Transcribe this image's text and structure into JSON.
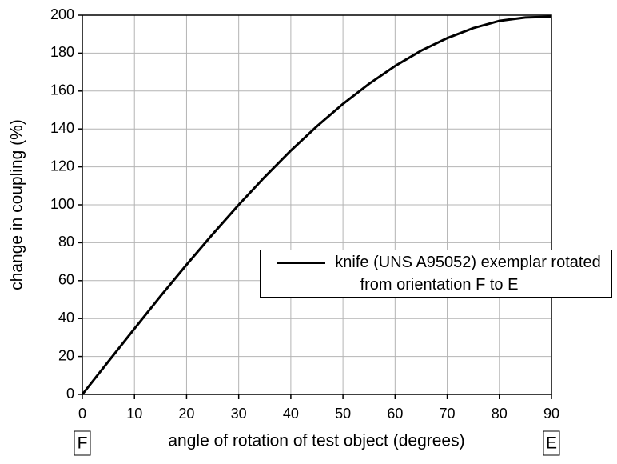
{
  "chart_data": {
    "type": "line",
    "x_label": "angle of rotation of test object (degrees)",
    "y_label": "change in coupling (%)",
    "x": [
      0,
      5,
      10,
      15,
      20,
      25,
      30,
      35,
      40,
      45,
      50,
      55,
      60,
      65,
      70,
      75,
      80,
      85,
      90
    ],
    "series": [
      {
        "name": "knife (UNS A95052) exemplar rotated from orientation F to E",
        "color": "#000000",
        "values": [
          0,
          17.4,
          34.7,
          51.8,
          68.4,
          84.5,
          100,
          114.7,
          128.6,
          141.4,
          153.2,
          163.8,
          173.2,
          181.3,
          187.9,
          193.2,
          197.0,
          198.8,
          199.2
        ]
      }
    ],
    "xlim": [
      0,
      90
    ],
    "xticks": [
      0,
      10,
      20,
      30,
      40,
      50,
      60,
      70,
      80,
      90
    ],
    "ylim": [
      0,
      200
    ],
    "yticks": [
      0,
      20,
      40,
      60,
      80,
      100,
      120,
      140,
      160,
      180,
      200
    ],
    "grid": true,
    "annotations": [
      "F",
      "E"
    ]
  }
}
